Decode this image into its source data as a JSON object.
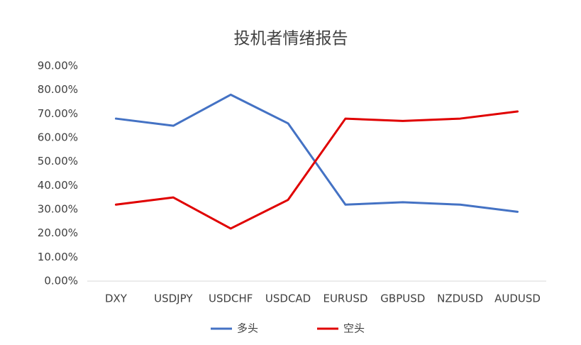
{
  "chart_data": {
    "type": "line",
    "title": "投机者情绪报告",
    "categories": [
      "DXY",
      "USDJPY",
      "USDCHF",
      "USDCAD",
      "EURUSD",
      "GBPUSD",
      "NZDUSD",
      "AUDUSD"
    ],
    "series": [
      {
        "name": "多头",
        "color": "#4472c4",
        "values": [
          68,
          65,
          78,
          66,
          32,
          33,
          32,
          29
        ]
      },
      {
        "name": "空头",
        "color": "#e00000",
        "values": [
          32,
          35,
          22,
          34,
          68,
          67,
          68,
          71
        ]
      }
    ],
    "ylim": [
      0,
      90
    ],
    "yticks": [
      {
        "value": 0,
        "label": "0.00%"
      },
      {
        "value": 10,
        "label": "10.00%"
      },
      {
        "value": 20,
        "label": "20.00%"
      },
      {
        "value": 30,
        "label": "30.00%"
      },
      {
        "value": 40,
        "label": "40.00%"
      },
      {
        "value": 50,
        "label": "50.00%"
      },
      {
        "value": 60,
        "label": "60.00%"
      },
      {
        "value": 70,
        "label": "70.00%"
      },
      {
        "value": 80,
        "label": "80.00%"
      },
      {
        "value": 90,
        "label": "90.00%"
      }
    ],
    "grid": false,
    "legend": "bottom"
  }
}
